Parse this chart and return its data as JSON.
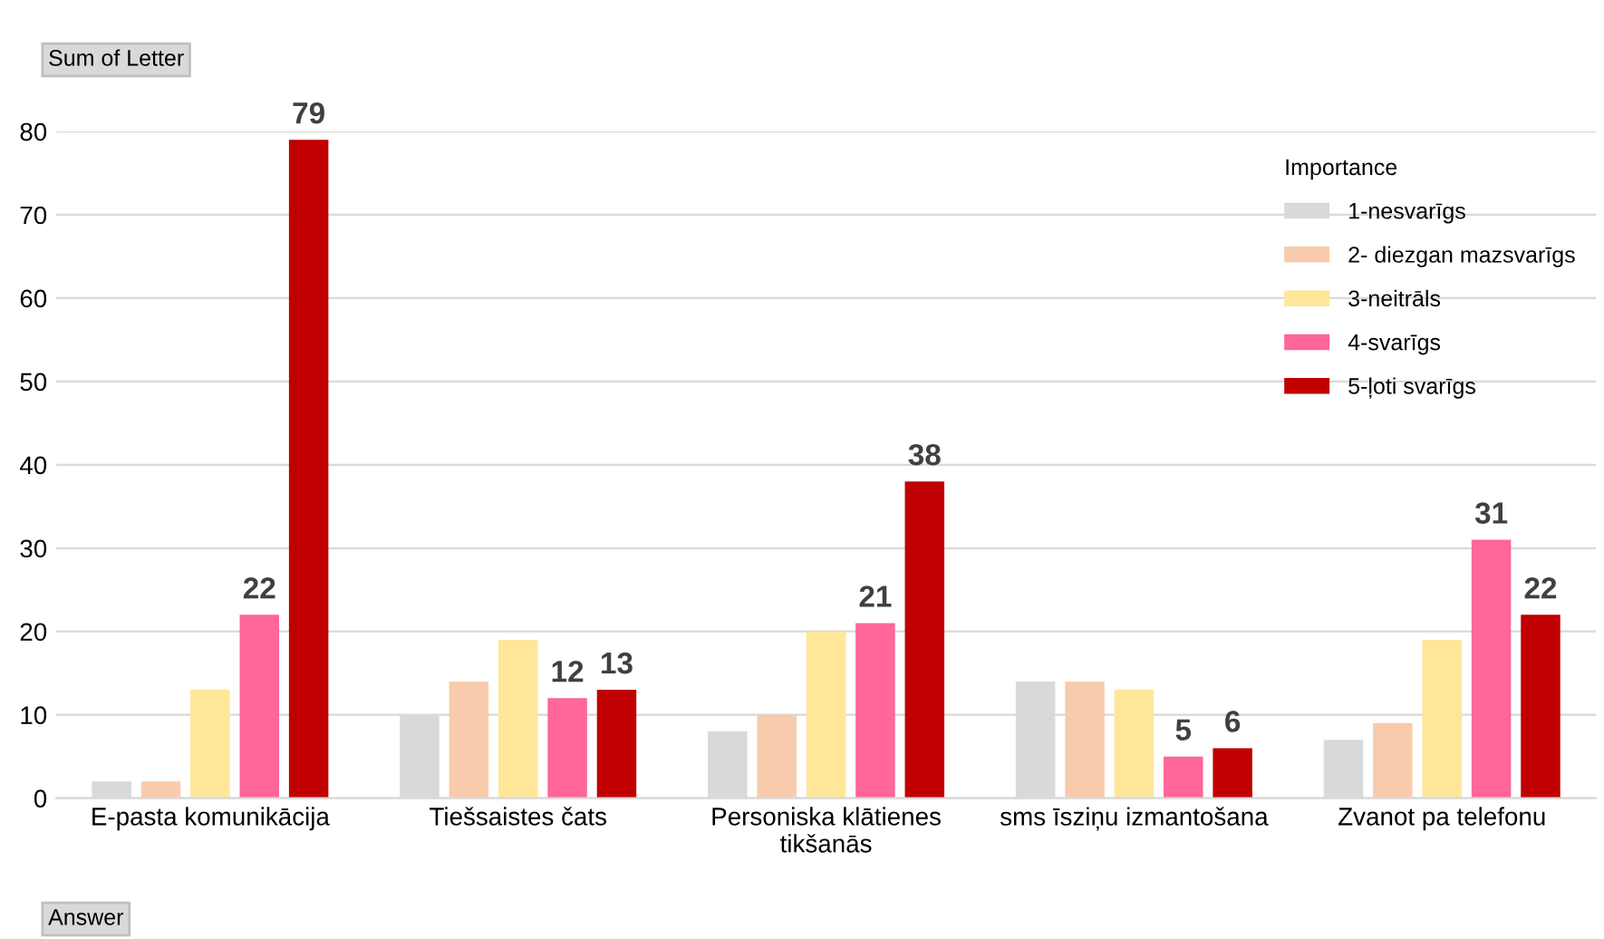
{
  "chart_data": {
    "type": "bar",
    "ylabel": "Sum of Letter",
    "xlabel": "Answer",
    "legend_title": "Importance",
    "categories": [
      "E-pasta komunikācija",
      "Tiešsaistes čats",
      "Personiska klātienes\ntikšanās",
      "sms īsziņu izmantošana",
      "Zvanot pa telefonu"
    ],
    "series": [
      {
        "name": "1-nesvarīgs",
        "color": "#d9d9d9",
        "values": [
          2,
          10,
          8,
          14,
          7
        ]
      },
      {
        "name": "2- diezgan mazsvarīgs",
        "color": "#f8cbad",
        "values": [
          2,
          14,
          10,
          14,
          9
        ]
      },
      {
        "name": "3-neitrāls",
        "color": "#ffe699",
        "values": [
          13,
          19,
          20,
          13,
          19
        ]
      },
      {
        "name": "4-svarīgs",
        "color": "#ff6699",
        "values": [
          22,
          12,
          21,
          5,
          31
        ],
        "value_labels": [
          "22",
          "12",
          "21",
          "5",
          "31"
        ]
      },
      {
        "name": "5-ļoti svarīgs",
        "color": "#c00000",
        "values": [
          79,
          13,
          38,
          6,
          22
        ],
        "value_labels": [
          "79",
          "13",
          "38",
          "6",
          "22"
        ]
      }
    ],
    "ylim": [
      0,
      80
    ],
    "yticks": [
      0,
      10,
      20,
      30,
      40,
      50,
      60,
      70,
      80
    ],
    "grid": "y",
    "legend": "top right"
  }
}
